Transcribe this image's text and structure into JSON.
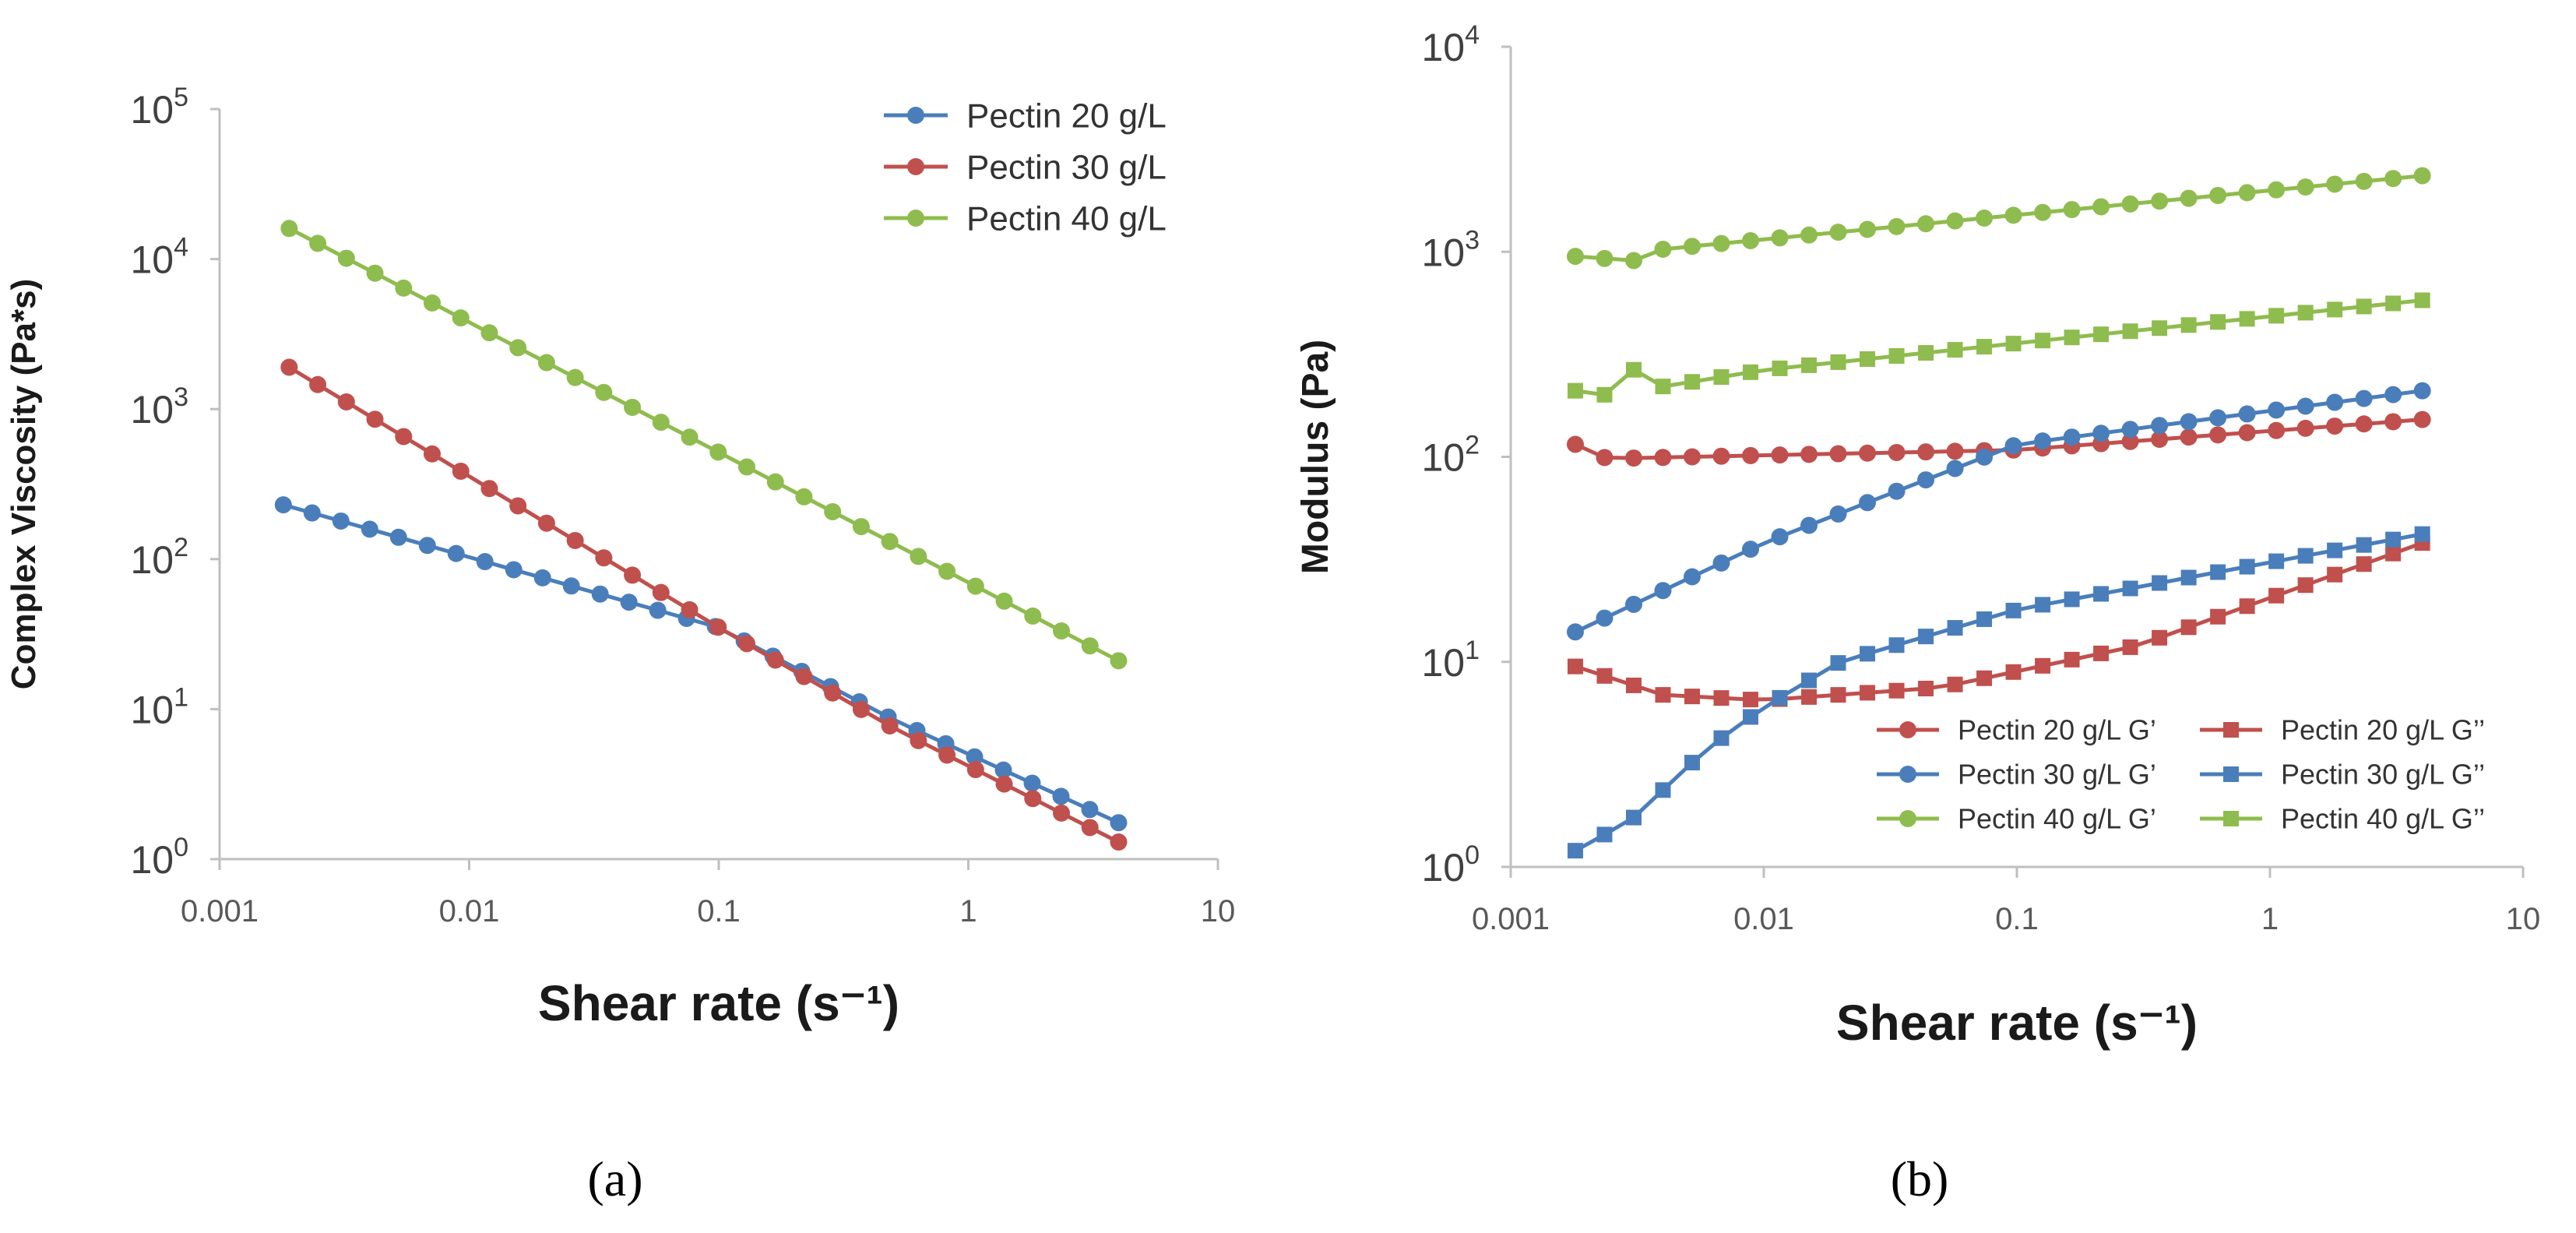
{
  "colors": {
    "blue": "#4a7ebb",
    "red": "#c0504d",
    "green": "#8fbc4e",
    "axis": "#bfbfbf"
  },
  "panels": {
    "a": "(a)",
    "b": "(b)"
  },
  "chart_data": [
    {
      "id": "a",
      "type": "line",
      "title": "",
      "xlabel": "Shear rate (s⁻¹)",
      "ylabel": "Complex Viscosity (Pa*s)",
      "xscale": "log",
      "yscale": "log",
      "xlim": [
        0.001,
        10
      ],
      "ylim": [
        1,
        100000
      ],
      "xticks": [
        "0.001",
        "0.01",
        "0.1",
        "1",
        "10"
      ],
      "yticks": [
        {
          "base": "10",
          "exp": "0"
        },
        {
          "base": "10",
          "exp": "1"
        },
        {
          "base": "10",
          "exp": "2"
        },
        {
          "base": "10",
          "exp": "3"
        },
        {
          "base": "10",
          "exp": "4"
        },
        {
          "base": "10",
          "exp": "5"
        }
      ],
      "legend_position": "top-right",
      "series": [
        {
          "name": "Pectin 20 g/L",
          "color": "blue",
          "marker": "circle",
          "x_start": 0.0018,
          "x_end": 4.0,
          "y_start": 230,
          "y_end": 1.75,
          "y_mid": 35,
          "y_low": 8.5
        },
        {
          "name": "Pectin 30 g/L",
          "color": "red",
          "marker": "circle",
          "x_start": 0.0019,
          "x_end": 4.0,
          "y_start": 1900,
          "y_end": 1.3,
          "y_mid": 35,
          "y_low": 7.5
        },
        {
          "name": "Pectin 40 g/L",
          "color": "green",
          "marker": "circle",
          "x_start": 0.0019,
          "x_end": 4.0,
          "y_start": 16000,
          "y_end": 21
        }
      ]
    },
    {
      "id": "b",
      "type": "line",
      "title": "",
      "xlabel": "Shear rate (s⁻¹)",
      "ylabel": "Modulus (Pa)",
      "xscale": "log",
      "yscale": "log",
      "xlim": [
        0.001,
        10
      ],
      "ylim": [
        1,
        10000
      ],
      "xticks": [
        "0.001",
        "0.01",
        "0.1",
        "1",
        "10"
      ],
      "yticks": [
        {
          "base": "10",
          "exp": "0"
        },
        {
          "base": "10",
          "exp": "1"
        },
        {
          "base": "10",
          "exp": "2"
        },
        {
          "base": "10",
          "exp": "3"
        },
        {
          "base": "10",
          "exp": "4"
        }
      ],
      "legend_position": "bottom-right",
      "series": [
        {
          "name": "Pectin 20 g/L G’",
          "color": "red",
          "marker": "circle",
          "x_start": 0.0018,
          "x_end": 4.0,
          "y_start": 115,
          "y_end": 152
        },
        {
          "name": "Pectin 30 g/L G’",
          "color": "blue",
          "marker": "circle",
          "x_start": 0.0018,
          "x_end": 4.0,
          "y_start": 14,
          "y_end": 210,
          "y_mid": 115
        },
        {
          "name": "Pectin 40 g/L G’",
          "color": "green",
          "marker": "circle",
          "x_start": 0.0018,
          "x_end": 4.0,
          "y_start": 950,
          "y_end": 2350
        },
        {
          "name": "Pectin 20 g/L G’’",
          "color": "red",
          "marker": "square",
          "x_start": 0.0018,
          "x_end": 4.0,
          "y_start": 9.5,
          "y_end": 38,
          "y_min": 6.5
        },
        {
          "name": "Pectin 30 g/L G’’",
          "color": "blue",
          "marker": "square",
          "x_start": 0.0018,
          "x_end": 4.0,
          "y_start": 1.2,
          "y_end": 42,
          "y_mid": 18
        },
        {
          "name": "Pectin 40 g/L G’’",
          "color": "green",
          "marker": "square",
          "x_start": 0.0018,
          "x_end": 4.0,
          "y_start": 210,
          "y_end": 580
        }
      ]
    }
  ]
}
